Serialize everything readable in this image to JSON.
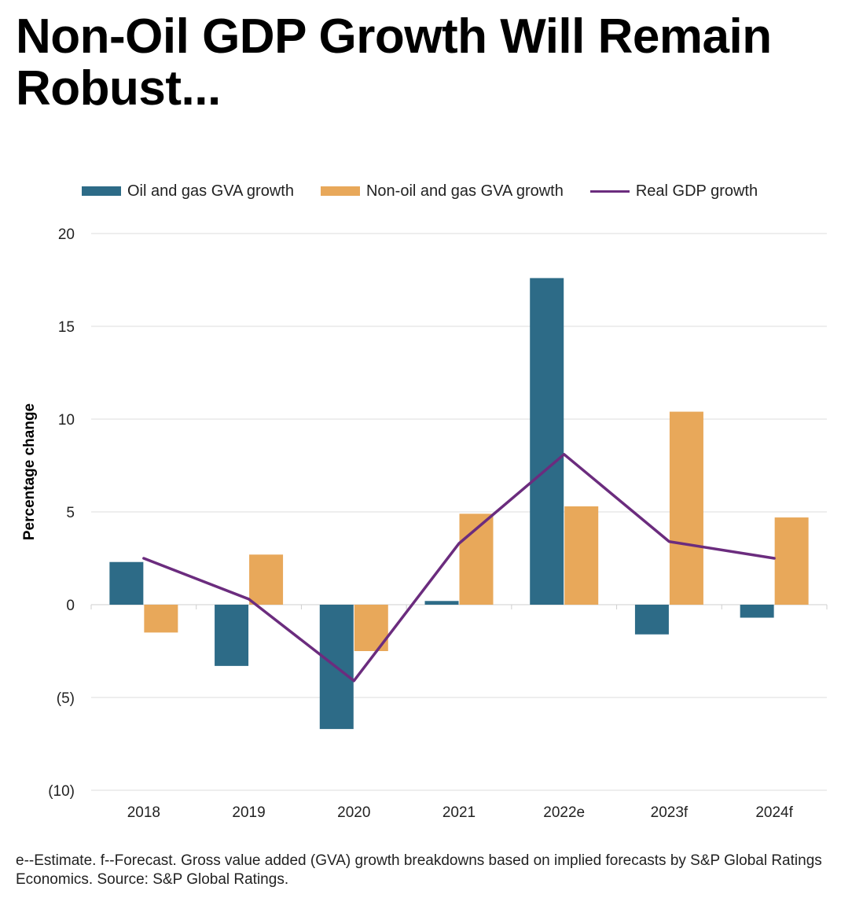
{
  "title": "Non-Oil GDP Growth Will Remain Robust...",
  "footnote": "e--Estimate. f--Forecast.  Gross value added (GVA) growth breakdowns based on implied forecasts by S&P Global Ratings Economics. Source: S&P Global Ratings.",
  "chart_data": {
    "type": "bar",
    "ylabel": "Percentage change",
    "ylim": [
      -10,
      20
    ],
    "yticks": [
      20,
      15,
      10,
      5,
      0,
      -5,
      -10
    ],
    "ytick_labels": [
      "20",
      "15",
      "10",
      "5",
      "0",
      "(5)",
      "(10)"
    ],
    "grid": true,
    "legend_position": "top",
    "categories": [
      "2018",
      "2019",
      "2020",
      "2021",
      "2022e",
      "2023f",
      "2024f"
    ],
    "series": [
      {
        "name": "Oil and gas GVA growth",
        "type": "bar",
        "color": "#2d6b87",
        "values": [
          2.3,
          -3.3,
          -6.7,
          0.2,
          17.6,
          -1.6,
          -0.7
        ]
      },
      {
        "name": "Non-oil and gas GVA growth",
        "type": "bar",
        "color": "#e8a85a",
        "values": [
          -1.5,
          2.7,
          -2.5,
          4.9,
          5.3,
          10.4,
          4.7
        ]
      },
      {
        "name": "Real GDP growth",
        "type": "line",
        "color": "#6b2c7e",
        "values": [
          2.5,
          0.3,
          -4.1,
          3.3,
          8.1,
          3.4,
          2.5
        ]
      }
    ]
  }
}
